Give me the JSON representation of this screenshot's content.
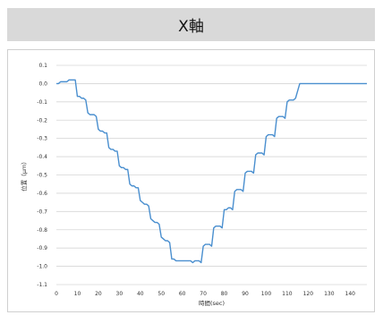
{
  "header": {
    "title": "X軸"
  },
  "colors": {
    "series": "#4a8fcf",
    "grid": "#d6d6d6",
    "header_bg": "#d9d9d9"
  },
  "chart_data": {
    "type": "line",
    "title": "",
    "xlabel": "時間(sec)",
    "ylabel": "位置（μm）",
    "xlim": [
      0,
      148
    ],
    "ylim": [
      -1.1,
      0.1
    ],
    "xticks": [
      "0",
      "10",
      "20",
      "30",
      "40",
      "50",
      "60",
      "70",
      "80",
      "90",
      "100",
      "110",
      "120",
      "130",
      "140"
    ],
    "yticks": [
      "0.1",
      "0.0",
      "-0.1",
      "-0.2",
      "-0.3",
      "-0.4",
      "-0.5",
      "-0.6",
      "-0.7",
      "-0.8",
      "-0.9",
      "-1.0",
      "-1.1"
    ],
    "grid": true,
    "series": [
      {
        "x": [
          0,
          1,
          2,
          3,
          4,
          5,
          6,
          7,
          8,
          9,
          10,
          11,
          12,
          13,
          14,
          15,
          16,
          17,
          18,
          19,
          20,
          21,
          22,
          23,
          24,
          25,
          26,
          27,
          28,
          29,
          30,
          31,
          32,
          33,
          34,
          35,
          36,
          37,
          38,
          39,
          40,
          41,
          42,
          43,
          44,
          45,
          46,
          47,
          48,
          49,
          50,
          51,
          52,
          53,
          54,
          55,
          56,
          57,
          58,
          59,
          60,
          61,
          62,
          63,
          64,
          65,
          66,
          67,
          68,
          69,
          70,
          71,
          72,
          73,
          74,
          75,
          76,
          77,
          78,
          79,
          80,
          81,
          82,
          83,
          84,
          85,
          86,
          87,
          88,
          89,
          90,
          91,
          92,
          93,
          94,
          95,
          96,
          97,
          98,
          99,
          100,
          101,
          102,
          103,
          104,
          105,
          106,
          107,
          108,
          109,
          110,
          111,
          112,
          113,
          114,
          115,
          116,
          117,
          118,
          119,
          120,
          121,
          122,
          123,
          124,
          125,
          126,
          127,
          128,
          129,
          130,
          131,
          132,
          133,
          134,
          135,
          136,
          137,
          138,
          139,
          140,
          141,
          142,
          143,
          144,
          145,
          146,
          147,
          148
        ],
        "values": [
          0.0,
          0.0,
          0.01,
          0.01,
          0.01,
          0.01,
          0.02,
          0.02,
          0.02,
          0.02,
          -0.07,
          -0.07,
          -0.08,
          -0.08,
          -0.09,
          -0.16,
          -0.17,
          -0.17,
          -0.17,
          -0.18,
          -0.25,
          -0.26,
          -0.26,
          -0.27,
          -0.27,
          -0.35,
          -0.36,
          -0.36,
          -0.37,
          -0.37,
          -0.45,
          -0.46,
          -0.46,
          -0.47,
          -0.47,
          -0.55,
          -0.56,
          -0.56,
          -0.57,
          -0.57,
          -0.64,
          -0.65,
          -0.66,
          -0.66,
          -0.67,
          -0.74,
          -0.75,
          -0.76,
          -0.76,
          -0.77,
          -0.84,
          -0.85,
          -0.86,
          -0.86,
          -0.87,
          -0.96,
          -0.96,
          -0.97,
          -0.97,
          -0.97,
          -0.97,
          -0.97,
          -0.97,
          -0.97,
          -0.97,
          -0.98,
          -0.97,
          -0.97,
          -0.97,
          -0.98,
          -0.89,
          -0.88,
          -0.88,
          -0.88,
          -0.89,
          -0.79,
          -0.78,
          -0.78,
          -0.78,
          -0.79,
          -0.69,
          -0.69,
          -0.68,
          -0.68,
          -0.69,
          -0.59,
          -0.58,
          -0.58,
          -0.58,
          -0.59,
          -0.49,
          -0.48,
          -0.48,
          -0.48,
          -0.49,
          -0.39,
          -0.38,
          -0.38,
          -0.38,
          -0.39,
          -0.29,
          -0.28,
          -0.28,
          -0.28,
          -0.29,
          -0.19,
          -0.18,
          -0.18,
          -0.18,
          -0.19,
          -0.1,
          -0.09,
          -0.09,
          -0.09,
          -0.08,
          -0.04,
          0.0,
          0.0,
          0.0,
          0.0,
          0.0,
          0.0,
          0.0,
          0.0,
          0.0,
          0.0,
          0.0,
          0.0,
          0.0,
          0.0,
          0.0,
          0.0,
          0.0,
          0.0,
          0.0,
          0.0,
          0.0,
          0.0,
          0.0,
          0.0,
          0.0,
          0.0,
          0.0,
          0.0,
          0.0,
          0.0,
          0.0,
          0.0,
          0.0
        ]
      }
    ]
  }
}
